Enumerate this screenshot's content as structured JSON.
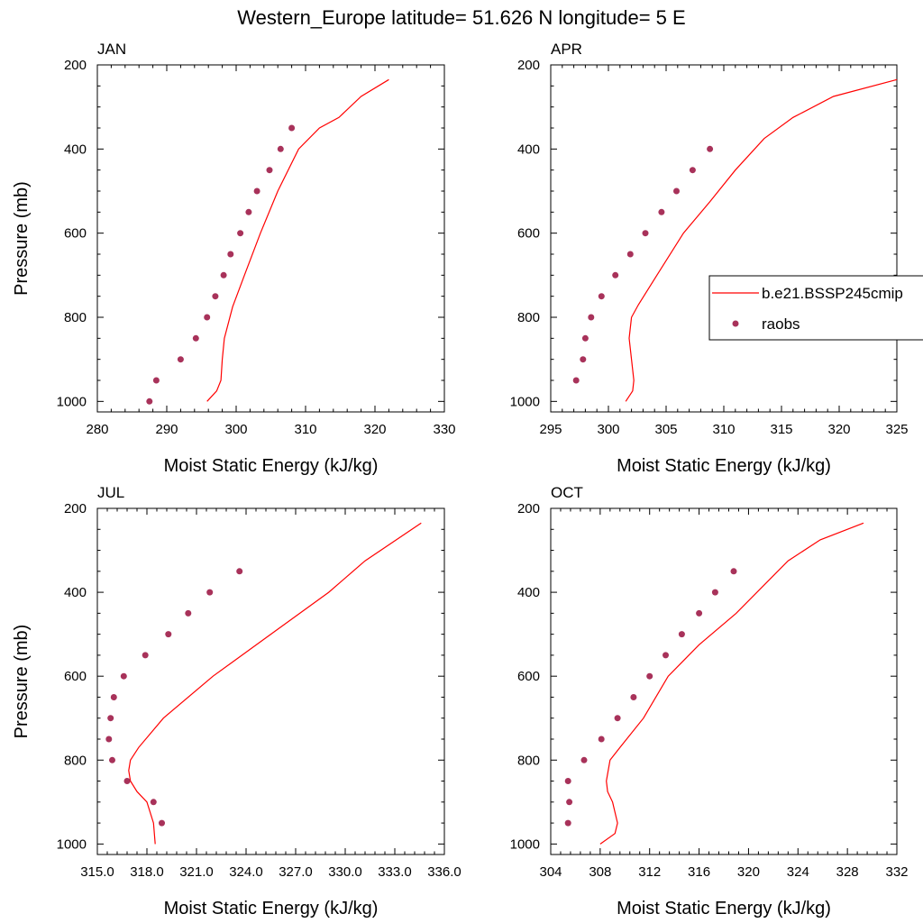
{
  "page_title": "Western_Europe  latitude= 51.626 N longitude= 5 E",
  "colors": {
    "model_line": "#ff0000",
    "raobs_marker": "#a8325a"
  },
  "legend": {
    "placement": "right, beside APR panel",
    "entries": [
      {
        "label": "b.e21.BSSP245cmip",
        "symbol": "line",
        "color": "#ff0000"
      },
      {
        "label": "raobs",
        "symbol": "dot",
        "color": "#a8325a"
      }
    ]
  },
  "chart_data": [
    {
      "type": "line",
      "title": "JAN",
      "xlabel": "Moist Static Energy (kJ/kg)",
      "ylabel": "Pressure (mb)",
      "xlim": [
        280,
        330
      ],
      "ylim": [
        1025,
        200
      ],
      "y_inverted": true,
      "xticks": [
        280,
        290,
        300,
        310,
        320,
        330
      ],
      "xtick_labels": [
        "280",
        "290",
        "300",
        "310",
        "320",
        "330"
      ],
      "yticks": [
        200,
        400,
        600,
        800,
        1000
      ],
      "ytick_labels": [
        "200",
        "400",
        "600",
        "800",
        "1000"
      ],
      "series": [
        {
          "name": "b.e21.BSSP245cmip",
          "kind": "line",
          "x": [
            295.8,
            297.2,
            297.8,
            298.0,
            298.3,
            299.5,
            301.2,
            303.5,
            306.0,
            309.0,
            312.0,
            314.8,
            318.0,
            322.0
          ],
          "y": [
            1000,
            975,
            950,
            900,
            850,
            775,
            700,
            600,
            500,
            400,
            350,
            325,
            275,
            235
          ]
        },
        {
          "name": "raobs",
          "kind": "scatter",
          "x": [
            287.5,
            288.5,
            292.0,
            294.2,
            295.8,
            297.0,
            298.2,
            299.2,
            300.6,
            301.8,
            303.0,
            304.8,
            306.4,
            308.0
          ],
          "y": [
            1000,
            950,
            900,
            850,
            800,
            750,
            700,
            650,
            600,
            550,
            500,
            450,
            400,
            350
          ]
        }
      ]
    },
    {
      "type": "line",
      "title": "APR",
      "xlabel": "Moist Static Energy (kJ/kg)",
      "ylabel": "",
      "xlim": [
        295,
        325
      ],
      "ylim": [
        1025,
        200
      ],
      "y_inverted": true,
      "xticks": [
        295,
        300,
        305,
        310,
        315,
        320,
        325
      ],
      "xtick_labels": [
        "295",
        "300",
        "305",
        "310",
        "315",
        "320",
        "325"
      ],
      "yticks": [
        200,
        400,
        600,
        800,
        1000
      ],
      "ytick_labels": [
        "200",
        "400",
        "600",
        "800",
        "1000"
      ],
      "series": [
        {
          "name": "b.e21.BSSP245cmip",
          "kind": "line",
          "x": [
            301.5,
            302.1,
            302.2,
            302.0,
            301.8,
            302.0,
            302.6,
            304.2,
            306.5,
            308.8,
            311.0,
            313.5,
            316.0,
            319.5,
            325.0
          ],
          "y": [
            1000,
            975,
            950,
            900,
            850,
            800,
            770,
            700,
            600,
            525,
            450,
            375,
            325,
            275,
            235
          ]
        },
        {
          "name": "raobs",
          "kind": "scatter",
          "x": [
            297.2,
            297.8,
            298.0,
            298.5,
            299.4,
            300.6,
            301.9,
            303.2,
            304.6,
            305.9,
            307.3,
            308.8
          ],
          "y": [
            950,
            900,
            850,
            800,
            750,
            700,
            650,
            600,
            550,
            500,
            450,
            400
          ]
        }
      ]
    },
    {
      "type": "line",
      "title": "JUL",
      "xlabel": "Moist Static Energy (kJ/kg)",
      "ylabel": "Pressure (mb)",
      "xlim": [
        315.0,
        336.0
      ],
      "ylim": [
        1025,
        200
      ],
      "y_inverted": true,
      "xticks": [
        315,
        318,
        321,
        324,
        327,
        330,
        333,
        336
      ],
      "xtick_labels": [
        "315.0",
        "318.0",
        "321.0",
        "324.0",
        "327.0",
        "330.0",
        "333.0",
        "336.0"
      ],
      "yticks": [
        200,
        400,
        600,
        800,
        1000
      ],
      "ytick_labels": [
        "200",
        "400",
        "600",
        "800",
        "1000"
      ],
      "series": [
        {
          "name": "b.e21.BSSP245cmip",
          "kind": "line",
          "x": [
            318.5,
            318.4,
            318.0,
            317.4,
            317.0,
            316.9,
            317.0,
            317.5,
            319.0,
            322.0,
            325.5,
            329.0,
            331.2,
            334.6
          ],
          "y": [
            1000,
            950,
            900,
            875,
            850,
            825,
            800,
            770,
            700,
            600,
            500,
            400,
            325,
            235
          ]
        },
        {
          "name": "raobs",
          "kind": "scatter",
          "x": [
            318.9,
            318.4,
            316.8,
            315.9,
            315.7,
            315.8,
            316.0,
            316.6,
            317.9,
            319.3,
            320.5,
            321.8,
            323.6
          ],
          "y": [
            950,
            900,
            850,
            800,
            750,
            700,
            650,
            600,
            550,
            500,
            450,
            400,
            350
          ]
        }
      ]
    },
    {
      "type": "line",
      "title": "OCT",
      "xlabel": "Moist Static Energy (kJ/kg)",
      "ylabel": "",
      "xlim": [
        304,
        332
      ],
      "ylim": [
        1025,
        200
      ],
      "y_inverted": true,
      "xticks": [
        304,
        308,
        312,
        316,
        320,
        324,
        328,
        332
      ],
      "xtick_labels": [
        "304",
        "308",
        "312",
        "316",
        "320",
        "324",
        "328",
        "332"
      ],
      "yticks": [
        200,
        400,
        600,
        800,
        1000
      ],
      "ytick_labels": [
        "200",
        "400",
        "600",
        "800",
        "1000"
      ],
      "series": [
        {
          "name": "b.e21.BSSP245cmip",
          "kind": "line",
          "x": [
            308.0,
            309.2,
            309.4,
            309.0,
            308.6,
            308.5,
            308.8,
            309.6,
            311.5,
            313.5,
            316.0,
            319.0,
            323.2,
            325.8,
            329.3
          ],
          "y": [
            1000,
            975,
            950,
            900,
            875,
            850,
            800,
            770,
            700,
            600,
            525,
            450,
            325,
            275,
            235
          ]
        },
        {
          "name": "raobs",
          "kind": "scatter",
          "x": [
            305.4,
            305.5,
            305.4,
            306.7,
            308.1,
            309.4,
            310.7,
            312.0,
            313.3,
            314.6,
            316.0,
            317.3,
            318.8
          ],
          "y": [
            950,
            900,
            850,
            800,
            750,
            700,
            650,
            600,
            550,
            500,
            450,
            400,
            350
          ]
        }
      ]
    }
  ]
}
